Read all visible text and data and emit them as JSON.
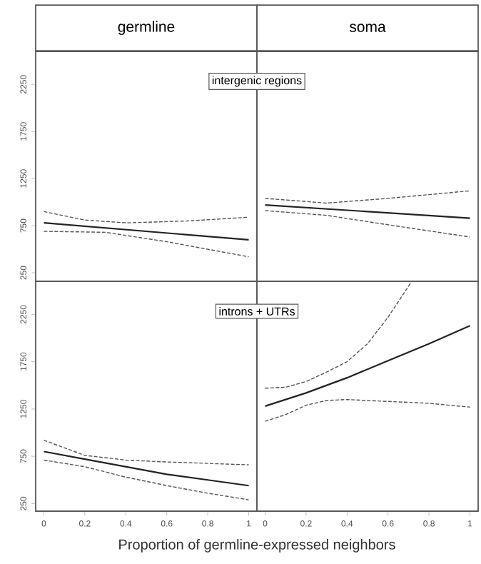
{
  "chart_data": [
    {
      "type": "line",
      "title": "germline",
      "subtitle": "intergenic regions",
      "xlim": [
        -0.04,
        1.04
      ],
      "ylim": [
        160,
        2600
      ],
      "yticks": [
        250,
        750,
        1250,
        1750,
        2250
      ],
      "tick_labels": "y",
      "series": [
        {
          "color": "#222222",
          "line_style": "solid",
          "x": [
            0,
            1
          ],
          "values": [
            780,
            600
          ]
        },
        {
          "color": "#555555",
          "line_style": "dashed",
          "x": [
            0,
            0.2,
            0.4,
            0.7,
            1
          ],
          "values": [
            900,
            810,
            780,
            800,
            840
          ]
        },
        {
          "color": "#555555",
          "line_style": "dashed",
          "x": [
            0,
            0.3,
            0.6,
            1
          ],
          "values": [
            690,
            680,
            580,
            420
          ]
        }
      ]
    },
    {
      "type": "line",
      "title": "soma",
      "xlim": [
        -0.04,
        1.04
      ],
      "ylim": [
        160,
        2600
      ],
      "tick_labels": false,
      "series": [
        {
          "color": "#222222",
          "line_style": "solid",
          "x": [
            0,
            1
          ],
          "values": [
            970,
            830
          ]
        },
        {
          "color": "#555555",
          "line_style": "dashed",
          "x": [
            0,
            0.3,
            0.6,
            1
          ],
          "values": [
            1040,
            990,
            1040,
            1120
          ]
        },
        {
          "color": "#555555",
          "line_style": "dashed",
          "x": [
            0,
            0.3,
            0.6,
            1
          ],
          "values": [
            910,
            860,
            760,
            630
          ]
        }
      ]
    },
    {
      "type": "line",
      "subtitle": "introns + UTRs",
      "xlabel": "Proportion of germline-expressed neighbors",
      "xlim": [
        -0.04,
        1.04
      ],
      "xticks": [
        0,
        0.2,
        0.4,
        0.6,
        0.8,
        1
      ],
      "ylim": [
        170,
        2600
      ],
      "yticks": [
        250,
        750,
        1250,
        1750,
        2250
      ],
      "series": [
        {
          "color": "#222222",
          "line_style": "solid",
          "x": [
            0,
            0.2,
            0.4,
            0.6,
            0.8,
            1
          ],
          "values": [
            800,
            720,
            640,
            560,
            500,
            440
          ]
        },
        {
          "color": "#555555",
          "line_style": "dashed",
          "x": [
            0,
            0.2,
            0.4,
            0.6,
            1
          ],
          "values": [
            920,
            760,
            710,
            690,
            660
          ]
        },
        {
          "color": "#555555",
          "line_style": "dashed",
          "x": [
            0,
            0.2,
            0.4,
            0.6,
            0.8,
            1
          ],
          "values": [
            710,
            640,
            530,
            440,
            360,
            290
          ]
        }
      ]
    },
    {
      "type": "line",
      "xlim": [
        -0.04,
        1.04
      ],
      "xticks": [
        0,
        0.2,
        0.4,
        0.6,
        0.8,
        1
      ],
      "ylim": [
        170,
        2600
      ],
      "tick_labels": "x",
      "series": [
        {
          "color": "#222222",
          "line_style": "solid",
          "x": [
            0,
            0.2,
            0.4,
            0.6,
            0.8,
            1
          ],
          "values": [
            1280,
            1420,
            1580,
            1760,
            1940,
            2130
          ]
        },
        {
          "color": "#555555",
          "line_style": "dashed",
          "x": [
            0,
            0.1,
            0.2,
            0.3,
            0.4,
            0.5,
            0.6,
            0.71
          ],
          "values": [
            1470,
            1480,
            1540,
            1640,
            1750,
            1940,
            2220,
            2580
          ]
        },
        {
          "color": "#555555",
          "line_style": "dashed",
          "x": [
            0,
            0.1,
            0.2,
            0.3,
            0.4,
            0.6,
            0.8,
            1
          ],
          "values": [
            1120,
            1190,
            1290,
            1340,
            1350,
            1330,
            1310,
            1270
          ]
        }
      ]
    }
  ]
}
